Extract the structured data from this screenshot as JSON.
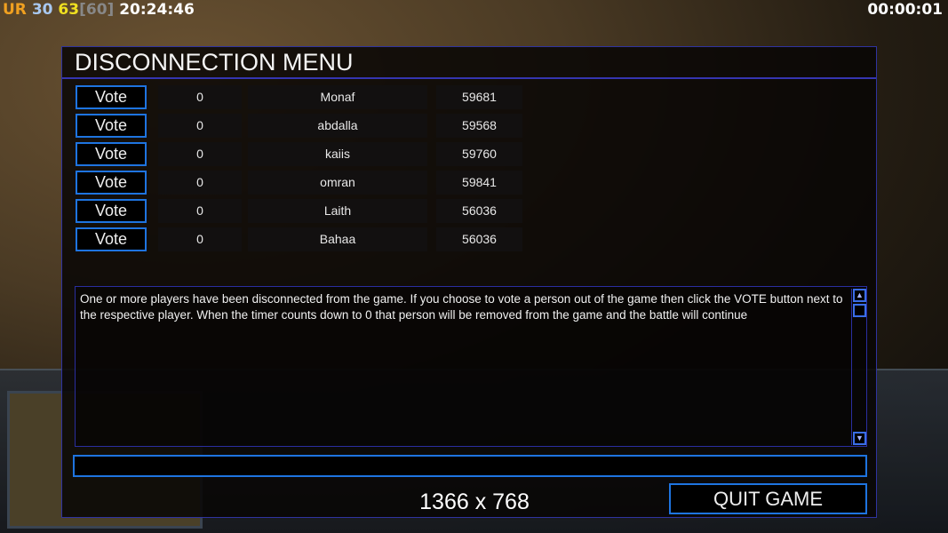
{
  "hud": {
    "faction": "UR",
    "val1": "30",
    "val2": "63",
    "val3": "[60]",
    "clock": "20:24:46",
    "timer": "00:00:01"
  },
  "colors": {
    "faction": "#f0a020",
    "val1": "#a8c8f0",
    "val2": "#f0e020",
    "val3": "#888888",
    "accent": "#1e74e0"
  },
  "dialog": {
    "title": "DISCONNECTION MENU",
    "players": [
      {
        "vote": "Vote",
        "count": "0",
        "name": "Monaf",
        "ping": "59681"
      },
      {
        "vote": "Vote",
        "count": "0",
        "name": "abdalla",
        "ping": "59568"
      },
      {
        "vote": "Vote",
        "count": "0",
        "name": "kaiis",
        "ping": "59760"
      },
      {
        "vote": "Vote",
        "count": "0",
        "name": "omran",
        "ping": "59841"
      },
      {
        "vote": "Vote",
        "count": "0",
        "name": "Laith",
        "ping": "56036"
      },
      {
        "vote": "Vote",
        "count": "0",
        "name": "Bahaa",
        "ping": "56036"
      }
    ],
    "message": "One or more players have been disconnected from the game. If you choose to vote a person out of the game then click the VOTE button next to the respective player. When the timer counts down to 0 that person will be removed from the game and the battle will continue",
    "chat_value": "",
    "resolution": "1366 x 768",
    "quit_label": "QUIT GAME"
  }
}
